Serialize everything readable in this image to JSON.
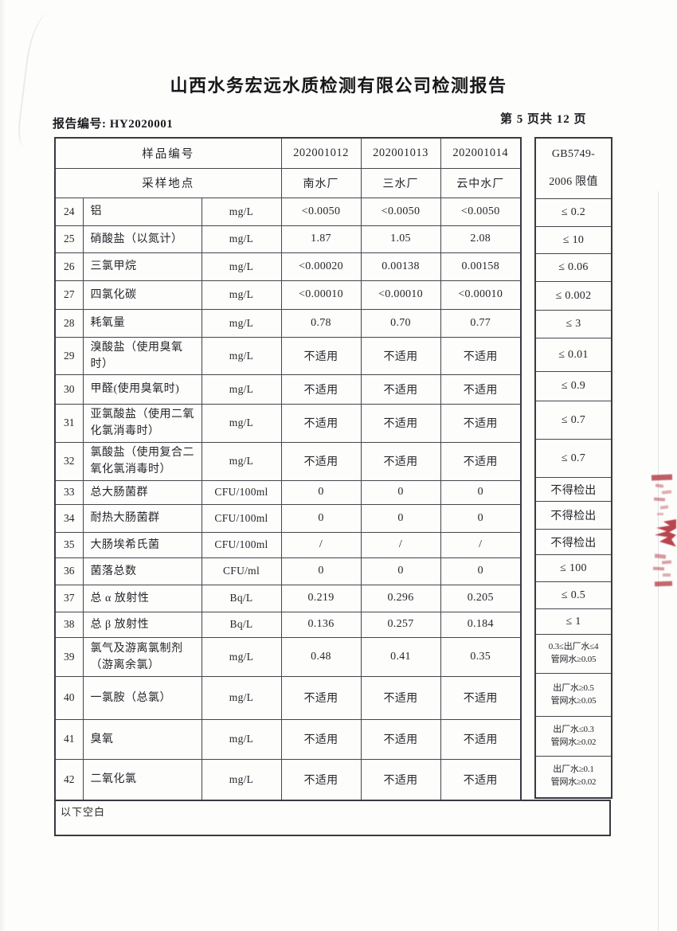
{
  "document": {
    "title": "山西水务宏远水质检测有限公司检测报告",
    "report_no_label": "报告编号:",
    "report_no": "HY2020001",
    "report_no_line": "报告编号: HY2020001",
    "page_indicator": "第 5 页共 12 页"
  },
  "table": {
    "header": {
      "sample_id_label": "样品编号",
      "location_label": "采样地点",
      "sample_ids": [
        "202001012",
        "202001013",
        "202001014"
      ],
      "locations": [
        "南水厂",
        "三水厂",
        "云中水厂"
      ],
      "limit_col_line1": "GB5749-",
      "limit_col_line2": "2006 限值"
    },
    "rows": [
      {
        "no": "24",
        "item": "铝",
        "unit": "mg/L",
        "values": [
          "<0.0050",
          "<0.0050",
          "<0.0050"
        ],
        "limit": "≤ 0.2"
      },
      {
        "no": "25",
        "item": "硝酸盐（以氮计）",
        "unit": "mg/L",
        "values": [
          "1.87",
          "1.05",
          "2.08"
        ],
        "limit": "≤ 10"
      },
      {
        "no": "26",
        "item": "三氯甲烷",
        "unit": "mg/L",
        "values": [
          "<0.00020",
          "0.00138",
          "0.00158"
        ],
        "limit": "≤ 0.06"
      },
      {
        "no": "27",
        "item": "四氯化碳",
        "unit": "mg/L",
        "values": [
          "<0.00010",
          "<0.00010",
          "<0.00010"
        ],
        "limit": "≤ 0.002"
      },
      {
        "no": "28",
        "item": "耗氧量",
        "unit": "mg/L",
        "values": [
          "0.78",
          "0.70",
          "0.77"
        ],
        "limit": "≤ 3"
      },
      {
        "no": "29",
        "item": "溴酸盐（使用臭氧时）",
        "unit": "mg/L",
        "values": [
          "不适用",
          "不适用",
          "不适用"
        ],
        "limit": "≤ 0.01"
      },
      {
        "no": "30",
        "item": "甲醛(使用臭氧时)",
        "unit": "mg/L",
        "values": [
          "不适用",
          "不适用",
          "不适用"
        ],
        "limit": "≤ 0.9"
      },
      {
        "no": "31",
        "item": "亚氯酸盐（使用二氧化氯消毒时）",
        "unit": "mg/L",
        "values": [
          "不适用",
          "不适用",
          "不适用"
        ],
        "limit": "≤ 0.7"
      },
      {
        "no": "32",
        "item": "氯酸盐（使用复合二氧化氯消毒时）",
        "unit": "mg/L",
        "values": [
          "不适用",
          "不适用",
          "不适用"
        ],
        "limit": "≤ 0.7"
      },
      {
        "no": "33",
        "item": "总大肠菌群",
        "unit": "CFU/100ml",
        "values": [
          "0",
          "0",
          "0"
        ],
        "limit": "不得检出"
      },
      {
        "no": "34",
        "item": "耐热大肠菌群",
        "unit": "CFU/100ml",
        "values": [
          "0",
          "0",
          "0"
        ],
        "limit": "不得检出"
      },
      {
        "no": "35",
        "item": "大肠埃希氏菌",
        "unit": "CFU/100ml",
        "values": [
          "/",
          "/",
          "/"
        ],
        "limit": "不得检出"
      },
      {
        "no": "36",
        "item": "菌落总数",
        "unit": "CFU/ml",
        "values": [
          "0",
          "0",
          "0"
        ],
        "limit": "≤ 100"
      },
      {
        "no": "37",
        "item": "总 α 放射性",
        "unit": "Bq/L",
        "values": [
          "0.219",
          "0.296",
          "0.205"
        ],
        "limit": "≤ 0.5"
      },
      {
        "no": "38",
        "item": "总 β 放射性",
        "unit": "Bq/L",
        "values": [
          "0.136",
          "0.257",
          "0.184"
        ],
        "limit": "≤ 1"
      },
      {
        "no": "39",
        "item": "氯气及游离氯制剂（游离余氯）",
        "unit": "mg/L",
        "values": [
          "0.48",
          "0.41",
          "0.35"
        ],
        "limit": "0.3≤出厂水≤4\n管网水≥0.05"
      },
      {
        "no": "40",
        "item": "一氯胺（总氯）",
        "unit": "mg/L",
        "values": [
          "不适用",
          "不适用",
          "不适用"
        ],
        "limit": "出厂水≥0.5\n管网水≥0.05"
      },
      {
        "no": "41",
        "item": "臭氧",
        "unit": "mg/L",
        "values": [
          "不适用",
          "不适用",
          "不适用"
        ],
        "limit": "出厂水≤0.3\n管网水≥0.02"
      },
      {
        "no": "42",
        "item": "二氧化氯",
        "unit": "mg/L",
        "values": [
          "不适用",
          "不适用",
          "不适用"
        ],
        "limit": "出厂水≥0.1\n管网水≥0.02"
      }
    ],
    "footer_note": "以下空白"
  },
  "stamp": {
    "description": "red-seal-fragment",
    "color": "#b23540"
  }
}
